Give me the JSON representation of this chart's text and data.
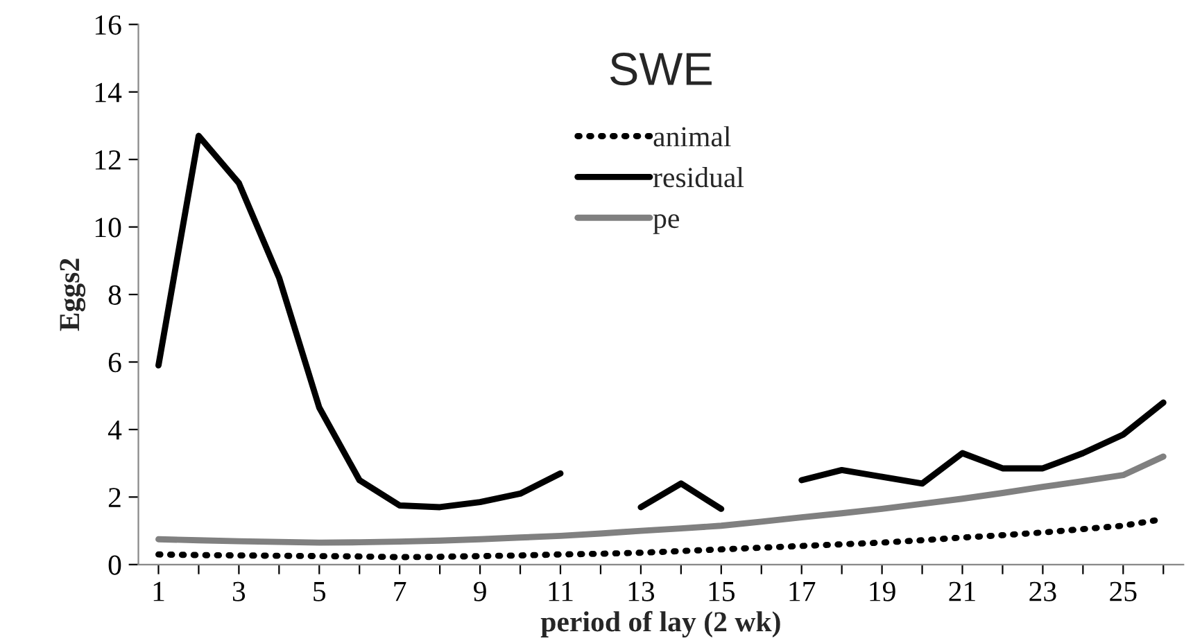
{
  "chart_data": {
    "type": "line",
    "title": "SWE",
    "xlabel": "period of lay (2 wk)",
    "ylabel": "Eggs2",
    "categories": [
      "1",
      null,
      "3",
      null,
      "5",
      null,
      "7",
      null,
      "9",
      null,
      "11",
      null,
      "13",
      null,
      "15",
      null,
      "17",
      null,
      "19",
      null,
      "21",
      null,
      "23",
      null,
      "25",
      null
    ],
    "series": [
      {
        "name": "animal",
        "color": "#000000",
        "line_style": "dotted",
        "values": [
          0.3,
          0.28,
          0.27,
          0.26,
          0.25,
          0.24,
          0.22,
          0.23,
          0.25,
          0.27,
          0.3,
          0.32,
          0.35,
          0.4,
          0.45,
          0.5,
          0.55,
          0.6,
          0.65,
          0.72,
          0.8,
          0.87,
          0.95,
          1.05,
          1.15,
          1.35
        ]
      },
      {
        "name": "residual",
        "color": "#000000",
        "line_style": "solid",
        "values": [
          5.9,
          12.7,
          11.3,
          8.5,
          4.65,
          2.5,
          1.75,
          1.7,
          1.85,
          2.1,
          2.7,
          null,
          1.7,
          2.4,
          1.65,
          null,
          2.5,
          2.8,
          2.6,
          2.4,
          3.3,
          2.85,
          2.85,
          3.3,
          3.85,
          4.8
        ]
      },
      {
        "name": "pe",
        "color": "#808080",
        "line_style": "solid",
        "values": [
          0.75,
          0.72,
          0.69,
          0.67,
          0.65,
          0.66,
          0.68,
          0.71,
          0.75,
          0.8,
          0.85,
          0.92,
          1.0,
          1.07,
          1.15,
          1.27,
          1.4,
          1.52,
          1.65,
          1.8,
          1.95,
          2.12,
          2.3,
          2.47,
          2.65,
          3.2
        ]
      }
    ],
    "ylim": [
      0,
      16
    ],
    "yticks": [
      0,
      2,
      4,
      6,
      8,
      10,
      12,
      14,
      16
    ],
    "grid": false,
    "legend": "top",
    "marker": "none"
  }
}
